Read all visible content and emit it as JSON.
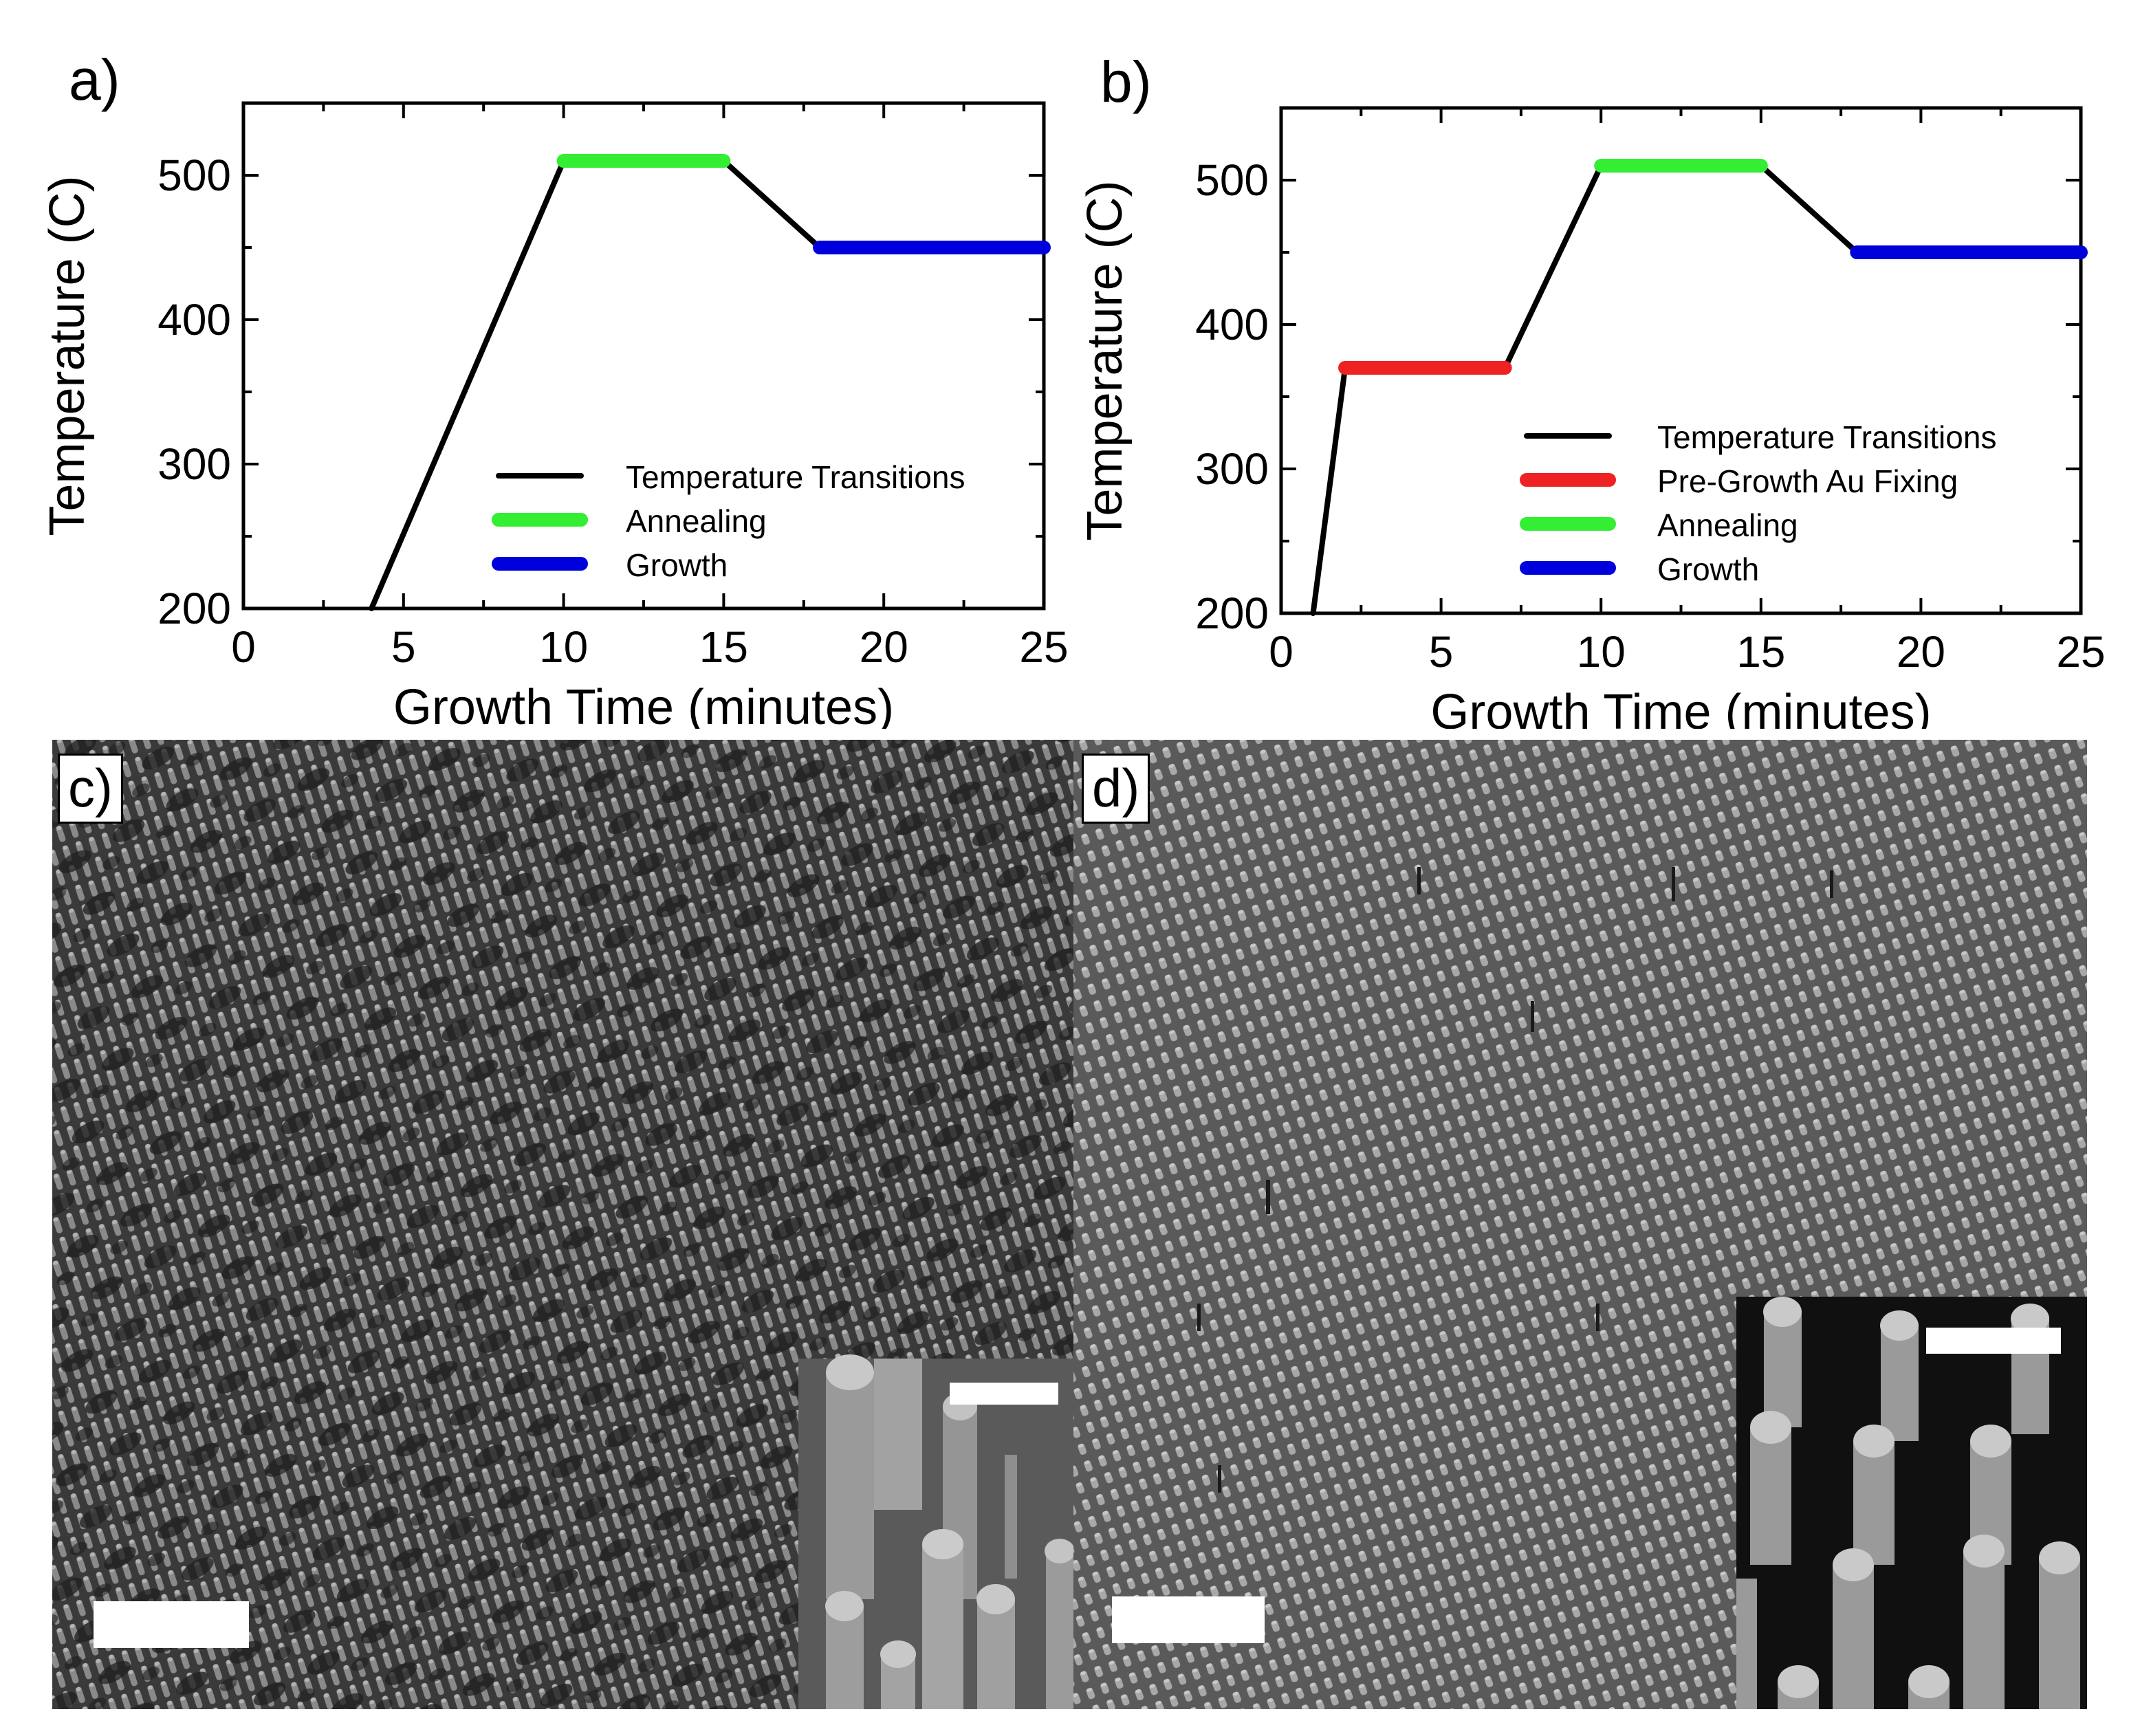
{
  "chart_data": [
    {
      "panel_label": "a)",
      "type": "line",
      "xlabel": "Growth Time (minutes)",
      "ylabel": "Temperature (C)",
      "xlim": [
        0,
        25
      ],
      "ylim": [
        200,
        550
      ],
      "xticks": [
        "0",
        "5",
        "10",
        "15",
        "20",
        "25"
      ],
      "yticks": [
        "200",
        "300",
        "400",
        "500"
      ],
      "legend_position": "lower-right",
      "series": [
        {
          "name": "Temperature Transitions",
          "color": "#000000",
          "segments": [
            [
              [
                4,
                200
              ],
              [
                10,
                510
              ]
            ],
            [
              [
                15,
                510
              ],
              [
                18,
                450
              ]
            ]
          ]
        },
        {
          "name": "Annealing",
          "color": "#33ee33",
          "segments": [
            [
              [
                10,
                510
              ],
              [
                15,
                510
              ]
            ]
          ]
        },
        {
          "name": "Growth",
          "color": "#0000dd",
          "segments": [
            [
              [
                18,
                450
              ],
              [
                25,
                450
              ]
            ]
          ]
        }
      ]
    },
    {
      "panel_label": "b)",
      "type": "line",
      "xlabel": "Growth Time (minutes)",
      "ylabel": "Temperature (C)",
      "xlim": [
        0,
        25
      ],
      "ylim": [
        200,
        550
      ],
      "xticks": [
        "0",
        "5",
        "10",
        "15",
        "20",
        "25"
      ],
      "yticks": [
        "200",
        "300",
        "400",
        "500"
      ],
      "legend_position": "lower-right",
      "series": [
        {
          "name": "Temperature Transitions",
          "color": "#000000",
          "segments": [
            [
              [
                1,
                200
              ],
              [
                2,
                370
              ]
            ],
            [
              [
                7,
                370
              ],
              [
                10,
                510
              ]
            ],
            [
              [
                15,
                510
              ],
              [
                18,
                450
              ]
            ]
          ]
        },
        {
          "name": "Pre-Growth Au Fixing",
          "color": "#ee2222",
          "segments": [
            [
              [
                2,
                370
              ],
              [
                7,
                370
              ]
            ]
          ]
        },
        {
          "name": "Annealing",
          "color": "#33ee33",
          "segments": [
            [
              [
                10,
                510
              ],
              [
                15,
                510
              ]
            ]
          ]
        },
        {
          "name": "Growth",
          "color": "#0000dd",
          "segments": [
            [
              [
                18,
                450
              ],
              [
                25,
                450
              ]
            ]
          ]
        }
      ]
    }
  ],
  "images": [
    {
      "panel_label": "c)",
      "description_icon": "sem-nanowire-array-disordered-icon"
    },
    {
      "panel_label": "d)",
      "description_icon": "sem-nanowire-array-ordered-icon"
    }
  ]
}
